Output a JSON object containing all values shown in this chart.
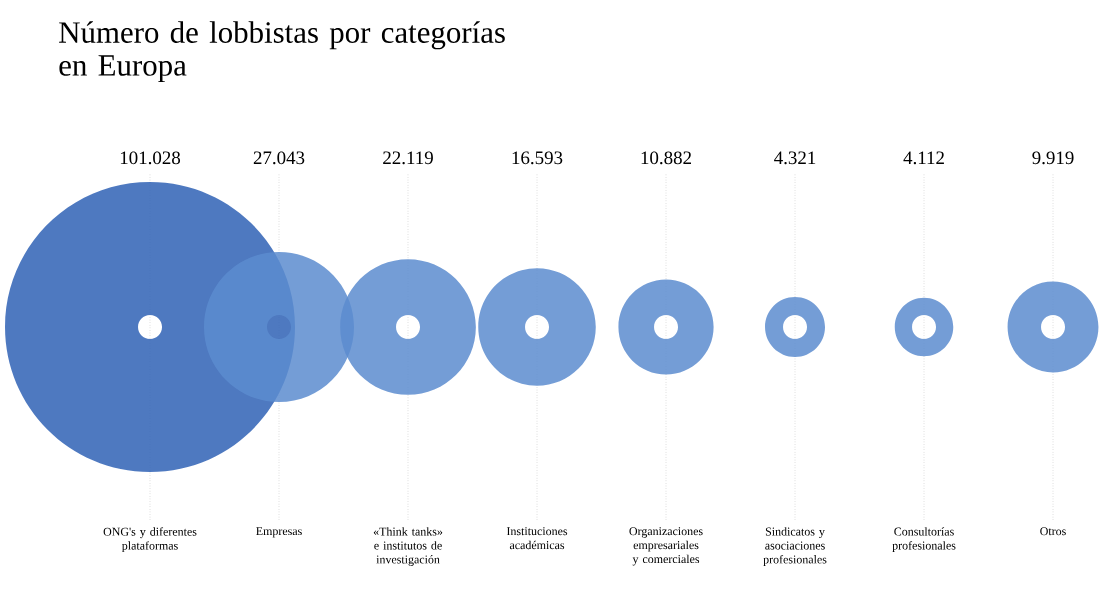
{
  "chart_data": {
    "type": "other",
    "title": "Número de lobbistas por categorías en Europa",
    "categories": [
      "ONG's y diferentes plataformas",
      "Empresas",
      "«Think tanks» e institutos de investigación",
      "Instituciones académicas",
      "Organizaciones empresariales y comerciales",
      "Sindicatos y asociaciones profesionales",
      "Consultorías profesionales",
      "Otros"
    ],
    "values": [
      101028,
      27043,
      22119,
      16593,
      10882,
      4321,
      4112,
      9919
    ],
    "value_labels": [
      "101.028",
      "27.043",
      "22.119",
      "16.593",
      "10.882",
      "4.321",
      "4.112",
      "9.919"
    ],
    "colors": [
      "#2f62b5",
      "#5c8ccf",
      "#5c8ccf",
      "#5c8ccf",
      "#5c8ccf",
      "#5c8ccf",
      "#5c8ccf",
      "#5c8ccf"
    ]
  }
}
